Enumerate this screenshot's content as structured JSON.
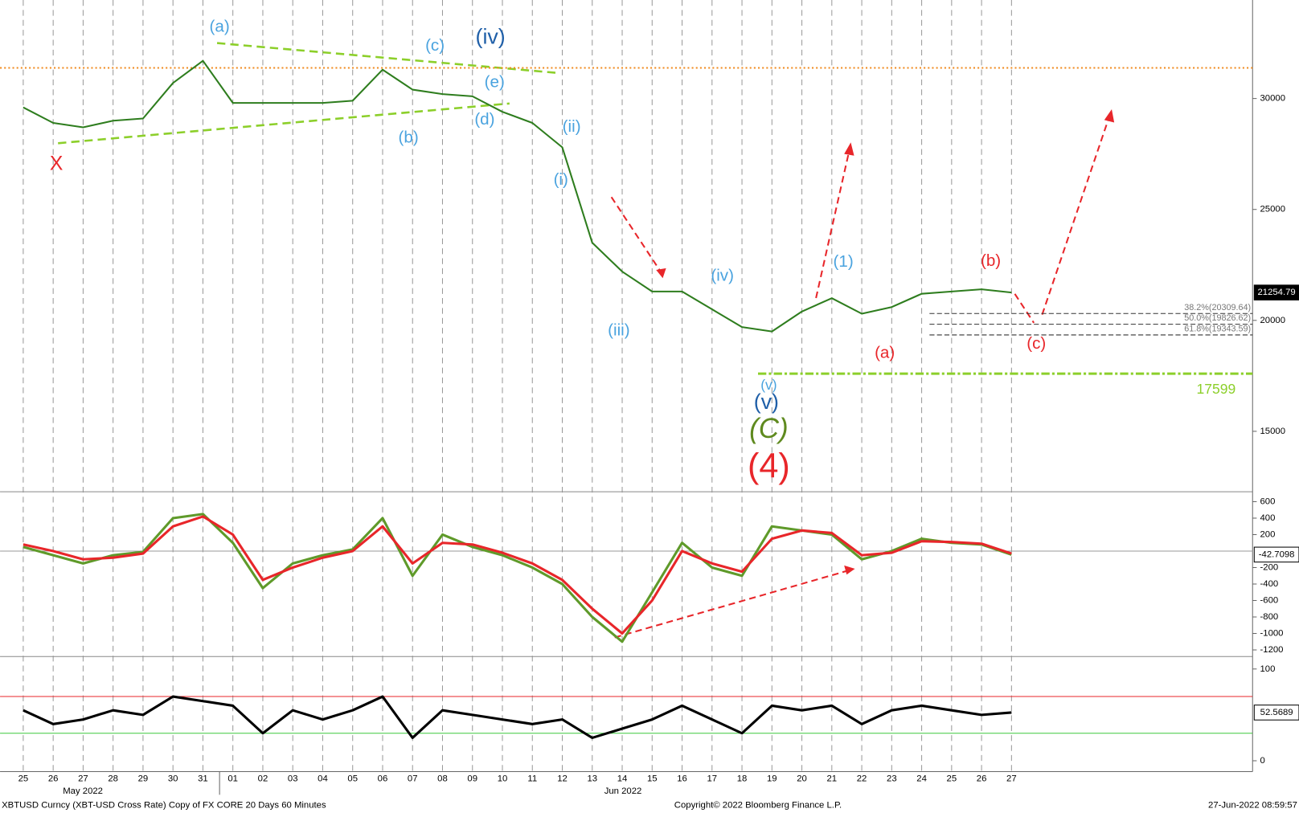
{
  "chart_data": [
    {
      "type": "line",
      "categories": [
        "25",
        "26",
        "27",
        "28",
        "29",
        "30",
        "31",
        "01",
        "02",
        "03",
        "04",
        "05",
        "06",
        "07",
        "08",
        "09",
        "10",
        "11",
        "12",
        "13",
        "14",
        "15",
        "16",
        "17",
        "18",
        "19",
        "20",
        "21",
        "22",
        "23",
        "24",
        "25",
        "26",
        "27"
      ],
      "month_labels": [
        "May 2022",
        "Jun 2022"
      ],
      "series": [
        {
          "color": "#2e7d1e",
          "values": [
            29600,
            28900,
            28700,
            29000,
            29100,
            30700,
            31700,
            29800,
            29800,
            29800,
            29800,
            29900,
            31300,
            30400,
            30200,
            30100,
            29400,
            28900,
            27800,
            23500,
            22200,
            21300,
            21300,
            20500,
            19700,
            19500,
            20400,
            21000,
            20300,
            20600,
            21200,
            21300,
            21400,
            21254.79
          ]
        }
      ],
      "ylim": [
        12350,
        34440
      ],
      "yticks": [
        15000,
        20000,
        25000,
        30000
      ],
      "resistance": 31380,
      "fib_levels": [
        {
          "value": 20309.64,
          "label": "38.2%(20309.64)"
        },
        {
          "value": 19826.62,
          "label": "50.0%(19826.62)"
        },
        {
          "value": 19343.59,
          "label": "61.8%(19343.59)"
        }
      ],
      "support": 17599,
      "wave_labels": [
        "(a)",
        "(c)",
        "(iv)",
        "(e)",
        "X",
        "(b)",
        "(d)",
        "(ii)",
        "(i)",
        "(iii)",
        "(iv)",
        "(v)",
        "(v)",
        "(C)",
        "(4)",
        "(1)",
        "(a)",
        "(b)",
        "(c)"
      ]
    },
    {
      "type": "line",
      "series": [
        {
          "color": "#5f9a2a",
          "values": [
            50,
            -50,
            -150,
            -50,
            -10,
            400,
            450,
            100,
            -450,
            -150,
            -50,
            20,
            400,
            -300,
            200,
            50,
            -50,
            -200,
            -400,
            -800,
            -1100,
            -500,
            100,
            -200,
            -300,
            300,
            250,
            200,
            -100,
            0,
            150,
            100,
            80,
            -42.7098
          ]
        },
        {
          "color": "#e8262a",
          "values": [
            80,
            0,
            -100,
            -80,
            -30,
            300,
            420,
            200,
            -350,
            -200,
            -80,
            0,
            300,
            -150,
            100,
            80,
            -20,
            -150,
            -350,
            -700,
            -1000,
            -600,
            0,
            -150,
            -250,
            150,
            250,
            220,
            -50,
            -20,
            120,
            110,
            90,
            -30
          ]
        }
      ],
      "ylim": [
        -1250,
        680
      ],
      "yticks": [
        600,
        400,
        200,
        -200,
        -400,
        -600,
        -800,
        -1000,
        -1200
      ],
      "zero": 0
    },
    {
      "type": "line",
      "series": [
        {
          "color": "#000000",
          "values": [
            55,
            40,
            45,
            55,
            50,
            70,
            65,
            60,
            30,
            55,
            45,
            55,
            70,
            25,
            55,
            50,
            45,
            40,
            45,
            25,
            35,
            45,
            60,
            45,
            30,
            60,
            55,
            60,
            40,
            55,
            60,
            55,
            50,
            52.5689
          ]
        }
      ],
      "ylim": [
        -10,
        110
      ],
      "yticks": [
        0,
        100
      ],
      "levels": [
        {
          "value": 70,
          "color": "#e8262a"
        },
        {
          "value": 30,
          "color": "#3cc83c"
        }
      ]
    }
  ],
  "footer": {
    "left": "XBTUSD Curncy (XBT-USD Cross Rate) Copy of FX CORE 20 Days 60 Minutes",
    "center": "Copyright© 2022 Bloomberg Finance L.P.",
    "right": "27-Jun-2022 08:59:57"
  }
}
